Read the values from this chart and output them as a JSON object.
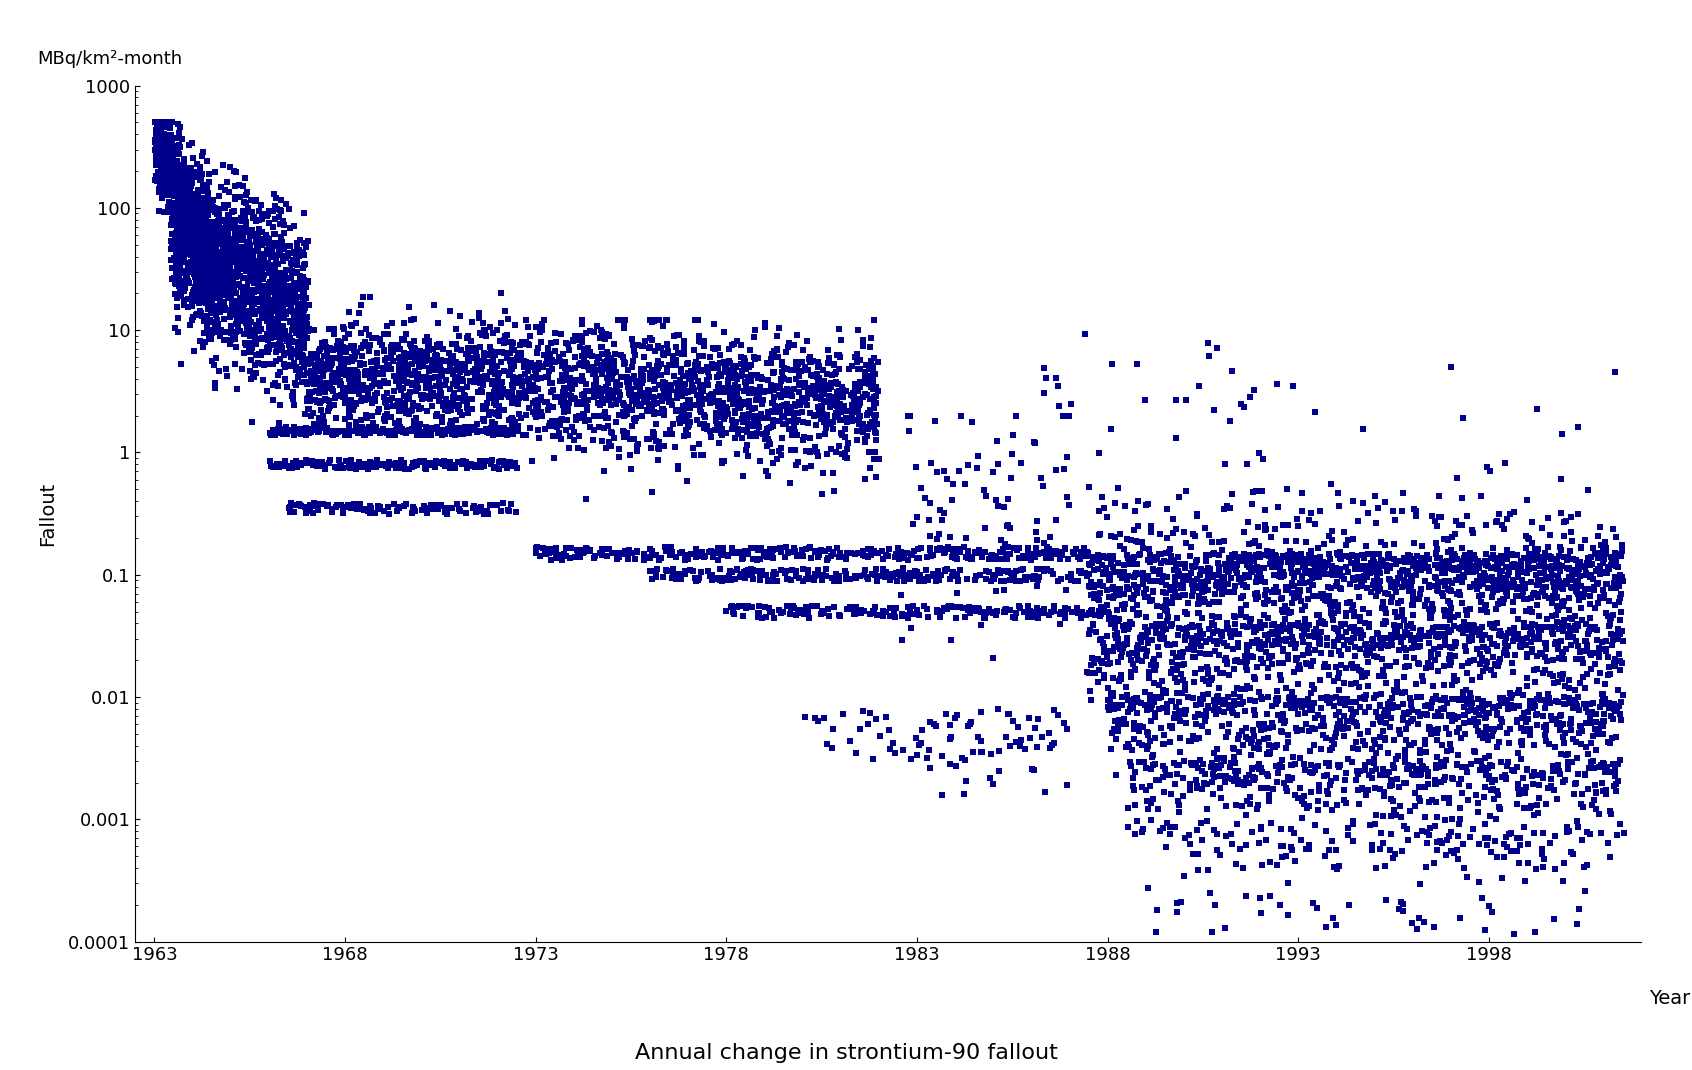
{
  "title": "Annual change in strontium-90 fallout",
  "ylabel": "Fallout",
  "ylabel_unit": "MBq/km²-month",
  "xlabel": "Year",
  "xmin": 1963,
  "xmax": 2002,
  "ymin": 0.0001,
  "ymax": 1000,
  "xticks": [
    1963,
    1968,
    1973,
    1978,
    1983,
    1988,
    1993,
    1998
  ],
  "marker_color": "#00008B",
  "marker_size": 18,
  "background_color": "#ffffff",
  "seed": 42
}
